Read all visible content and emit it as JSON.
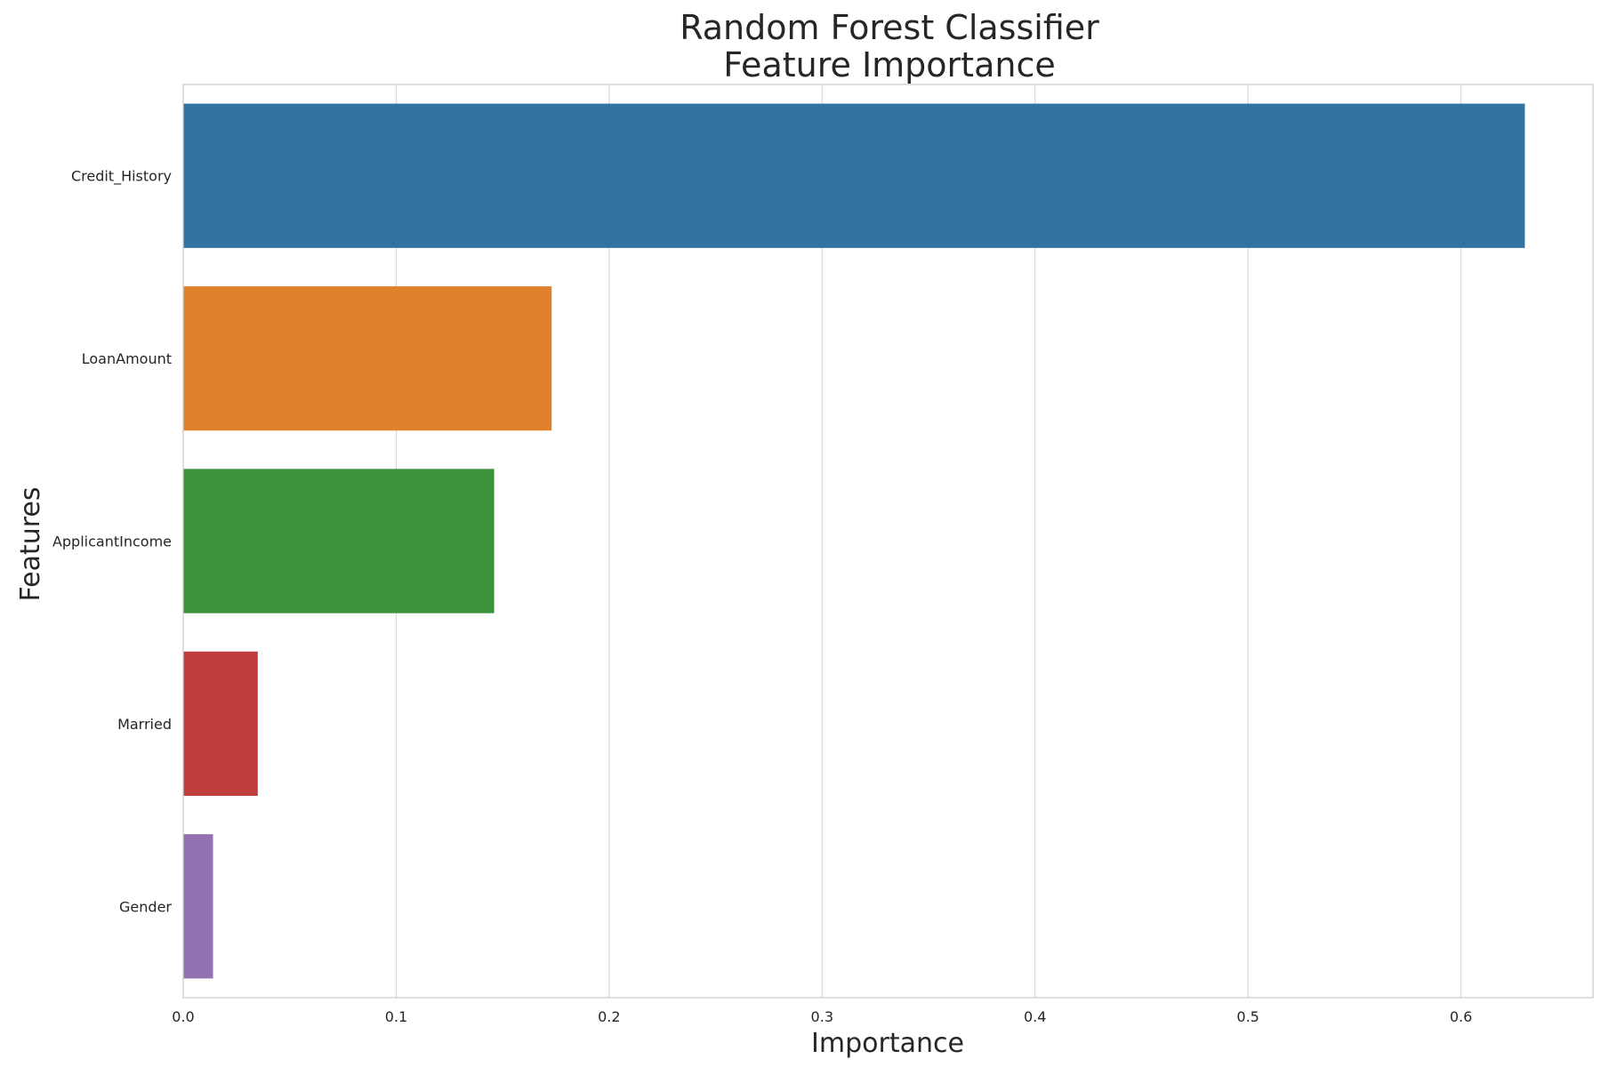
{
  "chart_data": {
    "type": "bar",
    "orientation": "horizontal",
    "title_lines": [
      "Random Forest Classifier",
      "Feature Importance"
    ],
    "xlabel": "Importance",
    "ylabel": "Features",
    "xlim": [
      0,
      0.662
    ],
    "xticks": [
      0.0,
      0.1,
      0.2,
      0.3,
      0.4,
      0.5,
      0.6
    ],
    "xtick_labels": [
      "0.0",
      "0.1",
      "0.2",
      "0.3",
      "0.4",
      "0.5",
      "0.6"
    ],
    "grid": "vertical",
    "categories": [
      "Credit_History",
      "LoanAmount",
      "ApplicantIncome",
      "Married",
      "Gender"
    ],
    "values": [
      0.63,
      0.173,
      0.146,
      0.035,
      0.014
    ],
    "colors": [
      "#3274a1",
      "#e1812c",
      "#3a923a",
      "#c03d3e",
      "#9372b2"
    ]
  }
}
